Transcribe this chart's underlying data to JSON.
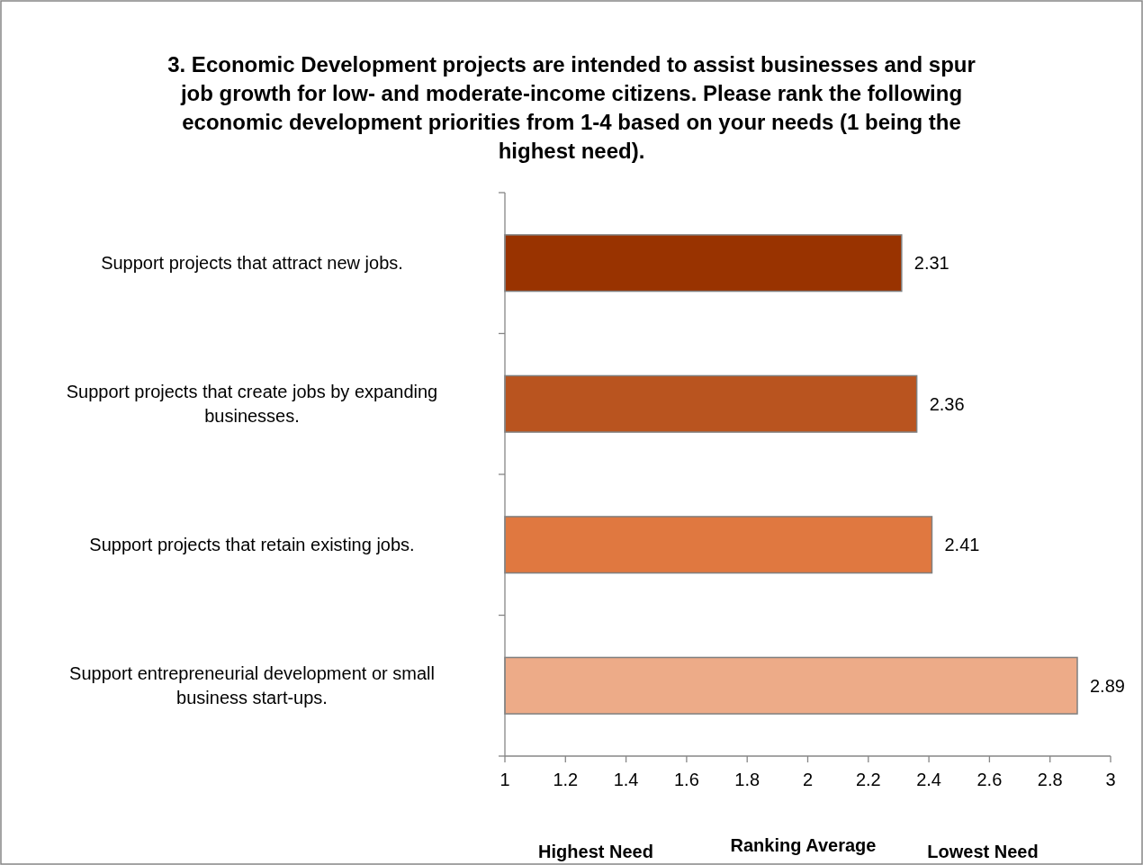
{
  "chart_data": {
    "type": "bar",
    "orientation": "horizontal",
    "title": "3. Economic Development projects are intended to assist businesses and spur job growth for low- and moderate-income citizens.  Please rank the following economic development priorities from 1-4 based on your needs (1 being the highest need).",
    "categories": [
      "Support projects that attract new jobs.",
      "Support projects that create jobs by expanding businesses.",
      "Support projects that retain existing jobs.",
      "Support entrepreneurial development or small business start-ups."
    ],
    "values": [
      2.31,
      2.36,
      2.41,
      2.89
    ],
    "colors": [
      "#993300",
      "#b9541f",
      "#e07840",
      "#edab88"
    ],
    "xlim": [
      1,
      3
    ],
    "xticks": [
      1,
      1.2,
      1.4,
      1.6,
      1.8,
      2,
      2.2,
      2.4,
      2.6,
      2.8,
      3
    ],
    "xlabel": "Ranking Average",
    "annotations": [
      "Highest Need",
      "Lowest Need"
    ],
    "data_labels": true,
    "grid": false,
    "legend": false
  }
}
